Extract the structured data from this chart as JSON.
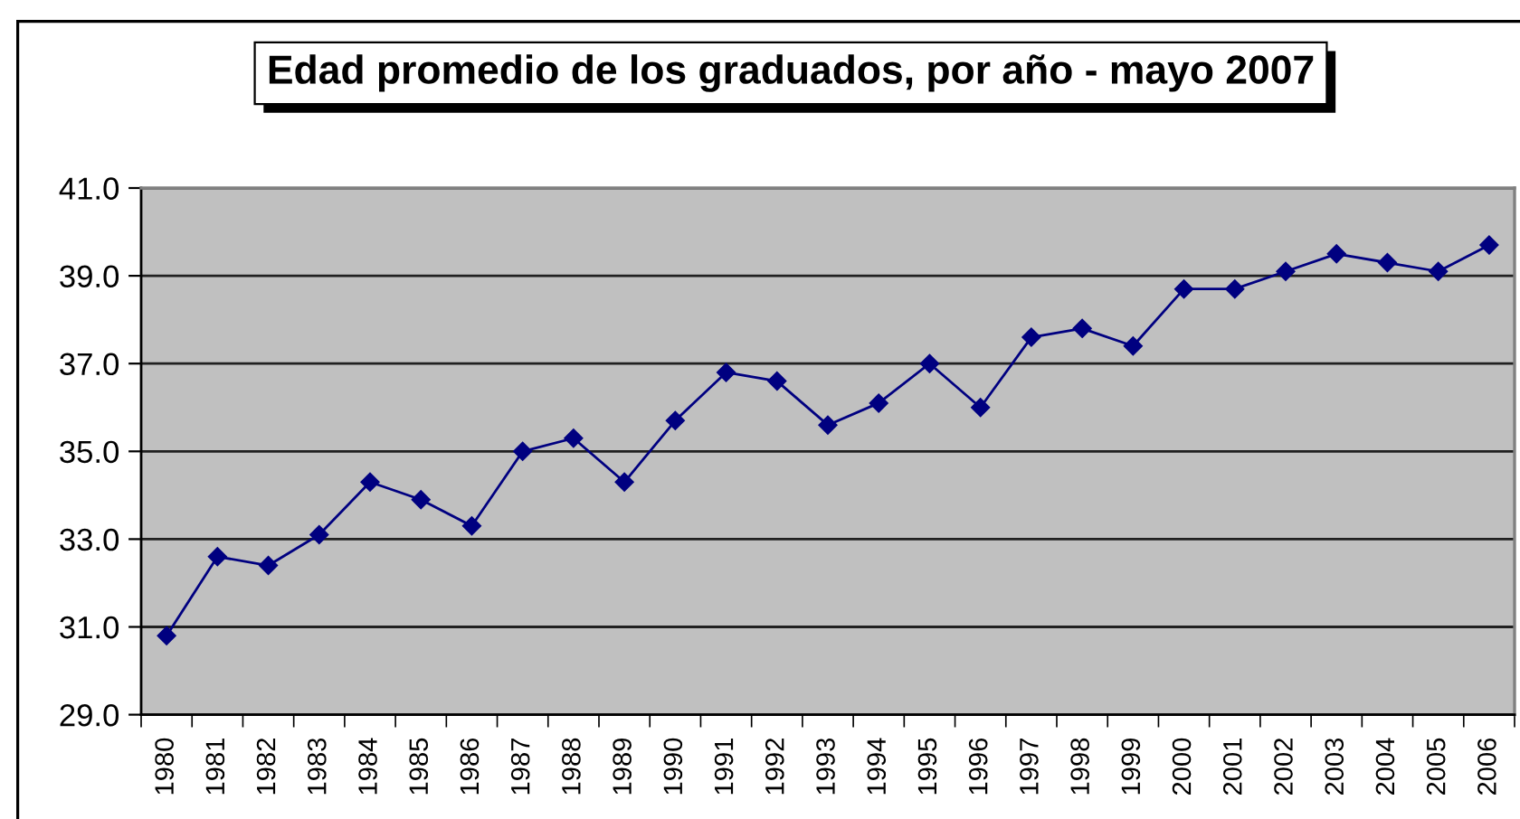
{
  "chart_data": {
    "type": "line",
    "title": "Edad promedio de los graduados, por año - mayo 2007",
    "categories": [
      "1980",
      "1981",
      "1982",
      "1983",
      "1984",
      "1985",
      "1986",
      "1987",
      "1988",
      "1989",
      "1990",
      "1991",
      "1992",
      "1993",
      "1994",
      "1995",
      "1996",
      "1997",
      "1998",
      "1999",
      "2000",
      "2001",
      "2002",
      "2003",
      "2004",
      "2005",
      "2006"
    ],
    "series": [
      {
        "color": "#000080",
        "values": [
          30.8,
          32.6,
          32.4,
          33.1,
          34.3,
          33.9,
          33.3,
          35.0,
          35.3,
          34.3,
          35.7,
          36.8,
          36.6,
          35.6,
          36.1,
          37.0,
          36.0,
          37.6,
          37.8,
          37.4,
          38.7,
          38.7,
          39.1,
          39.5,
          39.3,
          39.1,
          39.7
        ]
      }
    ],
    "ylim": [
      29,
      41
    ],
    "yticks": [
      {
        "value": 29,
        "label": "29.0"
      },
      {
        "value": 31,
        "label": "31.0"
      },
      {
        "value": 33,
        "label": "33.0"
      },
      {
        "value": 35,
        "label": "35.0"
      },
      {
        "value": 37,
        "label": "37.0"
      },
      {
        "value": 39,
        "label": "39.0"
      },
      {
        "value": 41,
        "label": "41.0"
      }
    ],
    "grid": "y",
    "marker": "diamond",
    "line_style": "solid"
  }
}
